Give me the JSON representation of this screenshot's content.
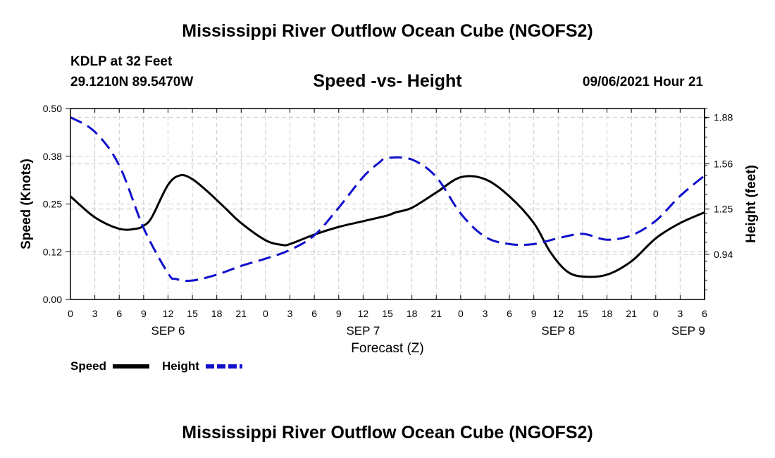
{
  "header": {
    "title": "Mississippi River Outflow Ocean Cube (NGOFS2)",
    "station": "KDLP at 32 Feet",
    "coordinates": "29.1210N  89.5470W",
    "subtitle": "Speed -vs- Height",
    "datetime": "09/06/2021 Hour 21"
  },
  "footer": {
    "title": "Mississippi River Outflow Ocean Cube (NGOFS2)"
  },
  "chart_data": {
    "type": "line",
    "title": "Speed -vs- Height",
    "xlabel": "Forecast (Z)",
    "ylabel": "Speed (Knots)",
    "y2label": "Height (feet)",
    "x_unit": "hours since 09/06 00Z",
    "xlim": [
      0,
      78
    ],
    "ylim": [
      0,
      0.5
    ],
    "y2lim": [
      0.63,
      1.94
    ],
    "grid": true,
    "x_ticks": [
      0,
      3,
      6,
      9,
      12,
      15,
      18,
      21,
      24,
      27,
      30,
      33,
      36,
      39,
      42,
      45,
      48,
      51,
      54,
      57,
      60,
      63,
      66,
      69,
      72,
      75,
      78
    ],
    "x_tick_labels": [
      "0",
      "3",
      "6",
      "9",
      "12",
      "15",
      "18",
      "21",
      "0",
      "3",
      "6",
      "9",
      "12",
      "15",
      "18",
      "21",
      "0",
      "3",
      "6",
      "9",
      "12",
      "15",
      "18",
      "21",
      "0",
      "3",
      "6"
    ],
    "date_labels": [
      {
        "hour": 12,
        "label": "SEP 6"
      },
      {
        "hour": 36,
        "label": "SEP 7"
      },
      {
        "hour": 60,
        "label": "SEP 8"
      },
      {
        "hour": 76,
        "label": "SEP 9"
      }
    ],
    "y_ticks": [
      0.0,
      0.125,
      0.25,
      0.375,
      0.5
    ],
    "y_tick_labels": [
      "0.00",
      "0.12",
      "0.25",
      "0.38",
      "0.50"
    ],
    "y2_ticks": [
      0.94,
      1.25,
      1.56,
      1.88
    ],
    "y2_tick_labels": [
      "0.94",
      "1.25",
      "1.56",
      "1.88"
    ],
    "legend": {
      "position": "bottom-left"
    },
    "series": [
      {
        "name": "Speed",
        "axis": "left",
        "color": "#000000",
        "style": "solid",
        "x": [
          0,
          3,
          6,
          8,
          9,
          10,
          12,
          13.5,
          15,
          17,
          19,
          21,
          24,
          26,
          27,
          30,
          33,
          36,
          39,
          40,
          42,
          45,
          48,
          51,
          54,
          57,
          59,
          61,
          63,
          66,
          69,
          72,
          75,
          78
        ],
        "y": [
          0.27,
          0.215,
          0.185,
          0.185,
          0.193,
          0.215,
          0.3,
          0.325,
          0.315,
          0.28,
          0.24,
          0.2,
          0.155,
          0.143,
          0.145,
          0.17,
          0.19,
          0.205,
          0.22,
          0.228,
          0.24,
          0.28,
          0.32,
          0.315,
          0.27,
          0.2,
          0.125,
          0.075,
          0.06,
          0.065,
          0.1,
          0.16,
          0.2,
          0.228
        ]
      },
      {
        "name": "Height",
        "axis": "right",
        "color": "#1010cc",
        "style": "dashed",
        "x": [
          0,
          3,
          6,
          9,
          12,
          13,
          15,
          18,
          21,
          24,
          27,
          30,
          33,
          36,
          38,
          39,
          42,
          45,
          48,
          51,
          54,
          57,
          60,
          63,
          66,
          69,
          72,
          75,
          78
        ],
        "y": [
          1.88,
          1.78,
          1.55,
          1.12,
          0.81,
          0.77,
          0.76,
          0.8,
          0.86,
          0.91,
          0.97,
          1.07,
          1.26,
          1.47,
          1.57,
          1.6,
          1.59,
          1.47,
          1.22,
          1.06,
          1.01,
          1.01,
          1.05,
          1.08,
          1.04,
          1.07,
          1.17,
          1.34,
          1.48
        ]
      }
    ]
  }
}
